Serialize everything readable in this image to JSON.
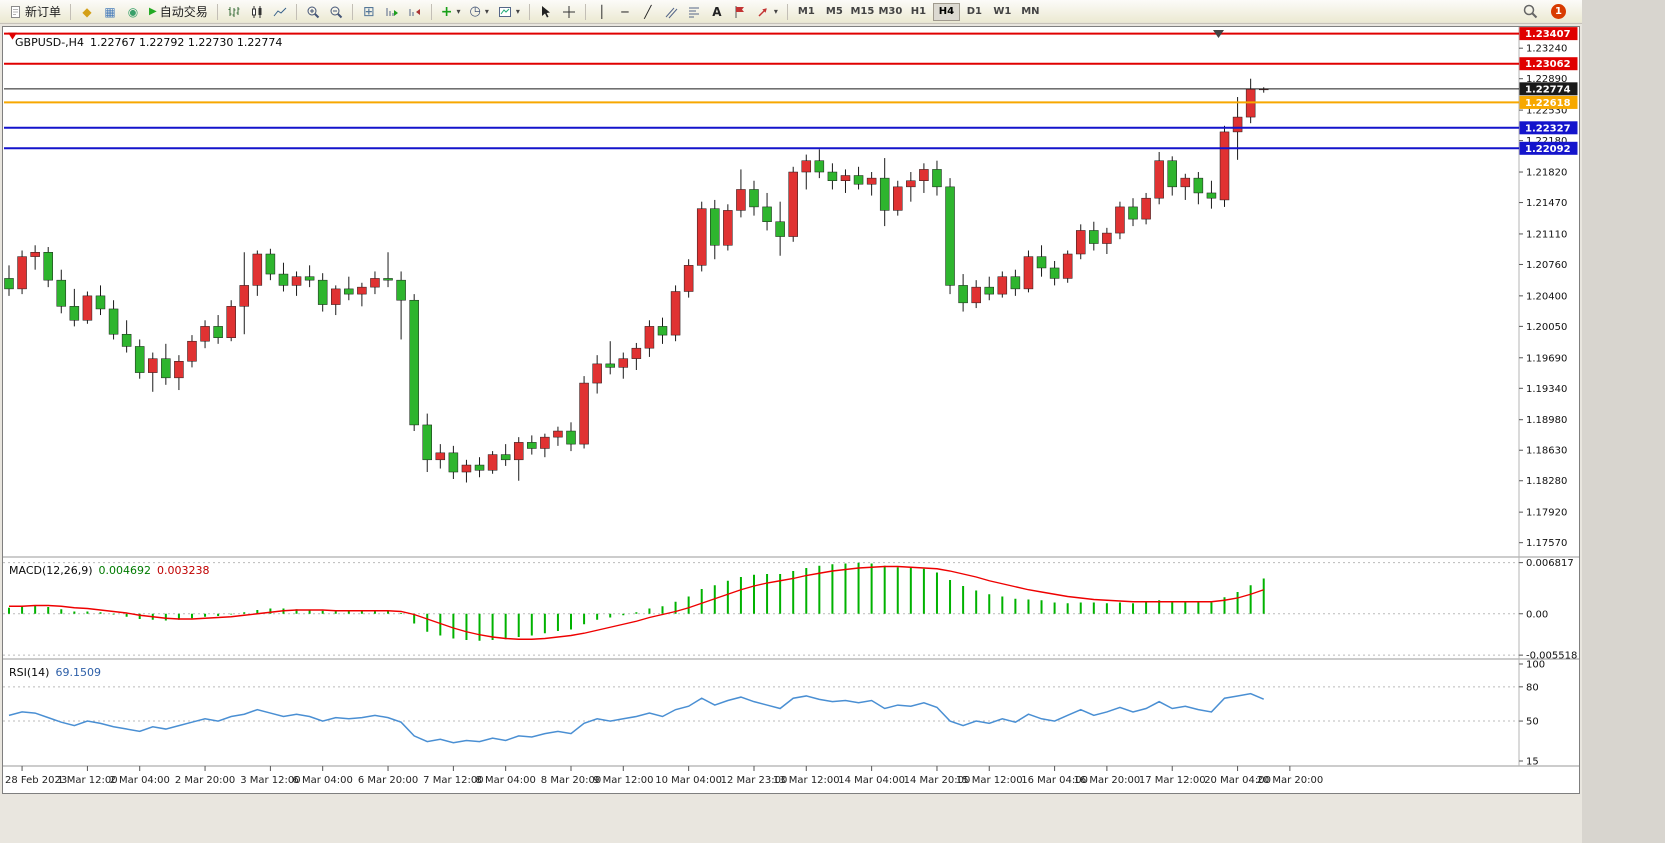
{
  "app": {
    "notification_count": "1"
  },
  "toolbar": {
    "new_order_label": "新订单",
    "autotrading_label": "自动交易",
    "timeframes": [
      "M1",
      "M5",
      "M15",
      "M30",
      "H1",
      "H4",
      "D1",
      "W1",
      "MN"
    ],
    "active_timeframe": "H4",
    "icons": {
      "gold_badge": "◆",
      "chart_window": "▦",
      "broadcast": "◉",
      "play": "▶",
      "tile_windows": "⊞",
      "add_indicator": "+",
      "clock": "◷",
      "caret": "▾",
      "vertical_line": "│",
      "horizontal_line": "─",
      "trendline": "╱",
      "text_tool": "A"
    }
  },
  "chart": {
    "symbol_period": "GBPUSD-,H4",
    "ohlc_text": "1.22767 1.22792 1.22730 1.22774"
  },
  "chart_data": {
    "type": "candlestick",
    "symbol": "GBPUSD-",
    "timeframe": "H4",
    "current": {
      "open": 1.22767,
      "high": 1.22792,
      "low": 1.2273,
      "close": 1.22774,
      "bid": 1.22774
    },
    "price_axis": {
      "min": 1.1744,
      "max": 1.2346,
      "ticks": [
        "1.23240",
        "1.22890",
        "1.22530",
        "1.22180",
        "1.21820",
        "1.21470",
        "1.21110",
        "1.20760",
        "1.20400",
        "1.20050",
        "1.19690",
        "1.19340",
        "1.18980",
        "1.18630",
        "1.18280",
        "1.17920",
        "1.17570"
      ]
    },
    "levels": [
      {
        "price": 1.23407,
        "text": "1.23407",
        "color": "#e00000",
        "width": 2,
        "bid": false
      },
      {
        "price": 1.23062,
        "text": "1.23062",
        "color": "#e00000",
        "width": 2,
        "bid": false
      },
      {
        "price": 1.22774,
        "text": "1.22774",
        "color": "#1a1a1a",
        "width": 1,
        "bid": true
      },
      {
        "price": 1.22618,
        "text": "1.22618",
        "color": "#f7a800",
        "width": 2,
        "bid": false
      },
      {
        "price": 1.22327,
        "text": "1.22327",
        "color": "#1414cc",
        "width": 2,
        "bid": false
      },
      {
        "price": 1.22092,
        "text": "1.22092",
        "color": "#1414cc",
        "width": 2,
        "bid": false
      }
    ],
    "candles": [
      [
        1.206,
        1.2075,
        1.204,
        1.2048
      ],
      [
        1.2048,
        1.2092,
        1.2042,
        1.2085
      ],
      [
        1.2085,
        1.2098,
        1.207,
        1.209
      ],
      [
        1.209,
        1.2096,
        1.205,
        1.2058
      ],
      [
        1.2058,
        1.207,
        1.202,
        1.2028
      ],
      [
        1.2028,
        1.2048,
        1.2005,
        1.2012
      ],
      [
        1.2012,
        1.2045,
        1.2008,
        1.204
      ],
      [
        1.204,
        1.2052,
        1.2018,
        1.2025
      ],
      [
        1.2025,
        1.2035,
        1.199,
        1.1996
      ],
      [
        1.1996,
        1.2012,
        1.1975,
        1.1982
      ],
      [
        1.1982,
        1.199,
        1.1945,
        1.1952
      ],
      [
        1.1952,
        1.1975,
        1.193,
        1.1968
      ],
      [
        1.1968,
        1.1985,
        1.1938,
        1.1946
      ],
      [
        1.1946,
        1.1972,
        1.1932,
        1.1965
      ],
      [
        1.1965,
        1.1995,
        1.1958,
        1.1988
      ],
      [
        1.1988,
        1.2012,
        1.198,
        1.2005
      ],
      [
        1.2005,
        1.2018,
        1.1985,
        1.1992
      ],
      [
        1.1992,
        1.2035,
        1.1988,
        1.2028
      ],
      [
        1.2028,
        1.209,
        1.1996,
        1.2052
      ],
      [
        1.2052,
        1.2092,
        1.204,
        1.2088
      ],
      [
        1.2088,
        1.2094,
        1.2058,
        1.2065
      ],
      [
        1.2065,
        1.2078,
        1.2045,
        1.2052
      ],
      [
        1.2052,
        1.2068,
        1.204,
        1.2062
      ],
      [
        1.2062,
        1.2075,
        1.205,
        1.2058
      ],
      [
        1.2058,
        1.2066,
        1.2022,
        1.203
      ],
      [
        1.203,
        1.2052,
        1.2018,
        1.2048
      ],
      [
        1.2048,
        1.2062,
        1.2035,
        1.2042
      ],
      [
        1.2042,
        1.2055,
        1.2028,
        1.205
      ],
      [
        1.205,
        1.2068,
        1.2042,
        1.206
      ],
      [
        1.206,
        1.209,
        1.205,
        1.2058
      ],
      [
        1.2058,
        1.2068,
        1.199,
        1.2035
      ],
      [
        1.2035,
        1.2042,
        1.1885,
        1.1892
      ],
      [
        1.1892,
        1.1905,
        1.1838,
        1.1852
      ],
      [
        1.1852,
        1.187,
        1.1842,
        1.186
      ],
      [
        1.186,
        1.1868,
        1.183,
        1.1838
      ],
      [
        1.1838,
        1.1852,
        1.1826,
        1.1846
      ],
      [
        1.1846,
        1.1855,
        1.1832,
        1.184
      ],
      [
        1.184,
        1.1862,
        1.1836,
        1.1858
      ],
      [
        1.1858,
        1.187,
        1.1845,
        1.1852
      ],
      [
        1.1852,
        1.1878,
        1.1828,
        1.1872
      ],
      [
        1.1872,
        1.188,
        1.1858,
        1.1865
      ],
      [
        1.1865,
        1.1882,
        1.1855,
        1.1878
      ],
      [
        1.1878,
        1.189,
        1.1868,
        1.1885
      ],
      [
        1.1885,
        1.1895,
        1.1862,
        1.187
      ],
      [
        1.187,
        1.1948,
        1.1865,
        1.194
      ],
      [
        1.194,
        1.1972,
        1.1928,
        1.1962
      ],
      [
        1.1962,
        1.1988,
        1.195,
        1.1958
      ],
      [
        1.1958,
        1.1975,
        1.1945,
        1.1968
      ],
      [
        1.1968,
        1.1986,
        1.1955,
        1.198
      ],
      [
        1.198,
        1.2012,
        1.197,
        1.2005
      ],
      [
        1.2005,
        1.2015,
        1.1985,
        1.1995
      ],
      [
        1.1995,
        1.2052,
        1.1988,
        1.2045
      ],
      [
        1.2045,
        1.2082,
        1.2038,
        1.2075
      ],
      [
        1.2075,
        1.2148,
        1.2068,
        1.214
      ],
      [
        1.214,
        1.215,
        1.2082,
        1.2098
      ],
      [
        1.2098,
        1.2145,
        1.2092,
        1.2138
      ],
      [
        1.2138,
        1.2185,
        1.213,
        1.2162
      ],
      [
        1.2162,
        1.2172,
        1.2132,
        1.2142
      ],
      [
        1.2142,
        1.2158,
        1.2115,
        1.2125
      ],
      [
        1.2125,
        1.2148,
        1.2086,
        1.2108
      ],
      [
        1.2108,
        1.2188,
        1.2102,
        1.2182
      ],
      [
        1.2182,
        1.2202,
        1.2162,
        1.2195
      ],
      [
        1.2195,
        1.2208,
        1.2175,
        1.2182
      ],
      [
        1.2182,
        1.2192,
        1.2162,
        1.2172
      ],
      [
        1.2172,
        1.2185,
        1.2158,
        1.2178
      ],
      [
        1.2178,
        1.2188,
        1.2162,
        1.2168
      ],
      [
        1.2168,
        1.2182,
        1.2155,
        1.2175
      ],
      [
        1.2175,
        1.2198,
        1.212,
        1.2138
      ],
      [
        1.2138,
        1.2172,
        1.2132,
        1.2165
      ],
      [
        1.2165,
        1.2182,
        1.2148,
        1.2172
      ],
      [
        1.2172,
        1.2192,
        1.2158,
        1.2185
      ],
      [
        1.2185,
        1.2195,
        1.2155,
        1.2165
      ],
      [
        1.2165,
        1.2175,
        1.2042,
        1.2052
      ],
      [
        1.2052,
        1.2065,
        1.2022,
        1.2032
      ],
      [
        1.2032,
        1.2058,
        1.2026,
        1.205
      ],
      [
        1.205,
        1.2062,
        1.2035,
        1.2042
      ],
      [
        1.2042,
        1.2068,
        1.2038,
        1.2062
      ],
      [
        1.2062,
        1.207,
        1.204,
        1.2048
      ],
      [
        1.2048,
        1.2092,
        1.2044,
        1.2085
      ],
      [
        1.2085,
        1.2098,
        1.2062,
        1.2072
      ],
      [
        1.2072,
        1.208,
        1.2052,
        1.206
      ],
      [
        1.206,
        1.2092,
        1.2055,
        1.2088
      ],
      [
        1.2088,
        1.2122,
        1.2082,
        1.2115
      ],
      [
        1.2115,
        1.2125,
        1.2092,
        1.21
      ],
      [
        1.21,
        1.2118,
        1.2088,
        1.2112
      ],
      [
        1.2112,
        1.2148,
        1.2105,
        1.2142
      ],
      [
        1.2142,
        1.2152,
        1.212,
        1.2128
      ],
      [
        1.2128,
        1.2158,
        1.2122,
        1.2152
      ],
      [
        1.2152,
        1.2205,
        1.2145,
        1.2195
      ],
      [
        1.2195,
        1.22,
        1.2155,
        1.2165
      ],
      [
        1.2165,
        1.218,
        1.215,
        1.2175
      ],
      [
        1.2175,
        1.2182,
        1.2145,
        1.2158
      ],
      [
        1.2158,
        1.2172,
        1.214,
        1.2152
      ],
      [
        1.215,
        1.2235,
        1.2142,
        1.2228
      ],
      [
        1.2228,
        1.2268,
        1.2196,
        1.2245
      ],
      [
        1.2245,
        1.2289,
        1.2238,
        1.2277
      ],
      [
        1.22767,
        1.22792,
        1.2273,
        1.22774
      ]
    ],
    "time_labels": [
      {
        "t": "28 Feb 2023",
        "i": 1
      },
      {
        "t": "1 Mar 12:00",
        "i": 6
      },
      {
        "t": "2 Mar 04:00",
        "i": 10
      },
      {
        "t": "2 Mar 20:00",
        "i": 15
      },
      {
        "t": "3 Mar 12:00",
        "i": 20
      },
      {
        "t": "6 Mar 04:00",
        "i": 24
      },
      {
        "t": "6 Mar 20:00",
        "i": 29
      },
      {
        "t": "7 Mar 12:00",
        "i": 34
      },
      {
        "t": "8 Mar 04:00",
        "i": 38
      },
      {
        "t": "8 Mar 20:00",
        "i": 43
      },
      {
        "t": "9 Mar 12:00",
        "i": 47
      },
      {
        "t": "10 Mar 04:00",
        "i": 52
      },
      {
        "t": "12 Mar 23:00",
        "i": 57
      },
      {
        "t": "13 Mar 12:00",
        "i": 61
      },
      {
        "t": "14 Mar 04:00",
        "i": 66
      },
      {
        "t": "14 Mar 20:00",
        "i": 71
      },
      {
        "t": "15 Mar 12:00",
        "i": 75
      },
      {
        "t": "16 Mar 04:00",
        "i": 80
      },
      {
        "t": "16 Mar 20:00",
        "i": 84
      },
      {
        "t": "17 Mar 12:00",
        "i": 89
      },
      {
        "t": "20 Mar 04:00",
        "i": 94
      },
      {
        "t": "20 Mar 20:00",
        "i": 98
      }
    ],
    "macd": {
      "label": "MACD(12,26,9)",
      "main_value": "0.004692",
      "signal_value": "0.003238",
      "scale": [
        {
          "v": 0.006817,
          "text": "0.006817"
        },
        {
          "v": 0,
          "text": "0.00"
        },
        {
          "v": -0.005518,
          "text": "-0.005518"
        }
      ],
      "histogram": [
        0.0008,
        0.001,
        0.0011,
        0.0009,
        0.0006,
        0.0003,
        0.0003,
        0.0002,
        -0.0001,
        -0.0004,
        -0.0007,
        -0.0008,
        -0.0009,
        -0.0008,
        -0.0006,
        -0.0004,
        -0.0003,
        -0.0001,
        0.0002,
        0.0005,
        0.0007,
        0.0007,
        0.0006,
        0.0005,
        0.0004,
        0.0003,
        0.0003,
        0.0003,
        0.0004,
        0.0004,
        0.0001,
        -0.0013,
        -0.0024,
        -0.0029,
        -0.0033,
        -0.0035,
        -0.0036,
        -0.0035,
        -0.0034,
        -0.0031,
        -0.0029,
        -0.0026,
        -0.0023,
        -0.0021,
        -0.0014,
        -0.0008,
        -0.0005,
        -0.0002,
        0.0002,
        0.0007,
        0.001,
        0.0016,
        0.0023,
        0.0033,
        0.0038,
        0.0044,
        0.0049,
        0.0052,
        0.0053,
        0.0053,
        0.0057,
        0.0061,
        0.0064,
        0.0066,
        0.0067,
        0.0068,
        0.0067,
        0.0064,
        0.0062,
        0.0061,
        0.006,
        0.0055,
        0.0045,
        0.0037,
        0.0031,
        0.0026,
        0.0023,
        0.002,
        0.0019,
        0.0018,
        0.0015,
        0.0014,
        0.0015,
        0.0015,
        0.0014,
        0.0015,
        0.0014,
        0.0015,
        0.0018,
        0.0017,
        0.0017,
        0.0016,
        0.0015,
        0.0022,
        0.0029,
        0.0038,
        0.0047
      ],
      "signal": [
        0.001,
        0.001,
        0.0011,
        0.0011,
        0.001,
        0.0008,
        0.0007,
        0.0005,
        0.0003,
        0.0001,
        -0.0002,
        -0.0004,
        -0.0006,
        -0.0007,
        -0.0007,
        -0.0006,
        -0.0005,
        -0.0004,
        -0.0002,
        0.0,
        0.0002,
        0.0004,
        0.0005,
        0.0005,
        0.0005,
        0.0004,
        0.0004,
        0.0004,
        0.0004,
        0.0004,
        0.0003,
        -0.0001,
        -0.0007,
        -0.0013,
        -0.0019,
        -0.0024,
        -0.0028,
        -0.0031,
        -0.0033,
        -0.0034,
        -0.0034,
        -0.0033,
        -0.0031,
        -0.0029,
        -0.0026,
        -0.0022,
        -0.0018,
        -0.0014,
        -0.001,
        -0.0005,
        -0.0001,
        0.0003,
        0.0008,
        0.0014,
        0.002,
        0.0026,
        0.0032,
        0.0037,
        0.0041,
        0.0044,
        0.0047,
        0.0051,
        0.0054,
        0.0057,
        0.0059,
        0.0061,
        0.0062,
        0.0063,
        0.0063,
        0.0062,
        0.0061,
        0.006,
        0.0057,
        0.0053,
        0.0049,
        0.0044,
        0.004,
        0.0036,
        0.0032,
        0.0029,
        0.0026,
        0.0023,
        0.0021,
        0.0019,
        0.0018,
        0.0017,
        0.0016,
        0.0016,
        0.0016,
        0.0016,
        0.0016,
        0.0016,
        0.0016,
        0.0018,
        0.0021,
        0.0026,
        0.0032
      ]
    },
    "rsi": {
      "label": "RSI(14)",
      "value": "69.1509",
      "scale_ticks": [
        {
          "v": 100,
          "text": "100"
        },
        {
          "v": 80,
          "text": "80"
        },
        {
          "v": 50,
          "text": "50"
        },
        {
          "v": 15,
          "text": "15"
        }
      ],
      "levels": [
        80,
        50
      ],
      "values": [
        55,
        58,
        57,
        53,
        49,
        46,
        50,
        48,
        45,
        43,
        41,
        45,
        43,
        46,
        49,
        52,
        50,
        54,
        56,
        60,
        57,
        54,
        56,
        54,
        50,
        53,
        52,
        53,
        55,
        53,
        49,
        37,
        32,
        34,
        31,
        33,
        32,
        35,
        33,
        37,
        36,
        39,
        41,
        39,
        48,
        52,
        50,
        52,
        54,
        57,
        54,
        60,
        63,
        70,
        64,
        68,
        71,
        67,
        64,
        61,
        70,
        72,
        69,
        67,
        68,
        66,
        68,
        61,
        64,
        63,
        66,
        62,
        50,
        46,
        50,
        48,
        52,
        49,
        56,
        52,
        50,
        55,
        60,
        55,
        58,
        62,
        58,
        61,
        67,
        61,
        63,
        60,
        58,
        70,
        72,
        74,
        69.15
      ]
    },
    "colors": {
      "up": "#e03232",
      "down": "#2eb52e",
      "wick": "#1a1a1a",
      "macd_hist": "#00b200",
      "macd_signal": "#ee0000",
      "rsi_line": "#4a8fd3",
      "level_red": "#e00000",
      "level_blue": "#1414cc",
      "level_orange": "#f7a800",
      "bid": "#1a1a1a"
    }
  }
}
